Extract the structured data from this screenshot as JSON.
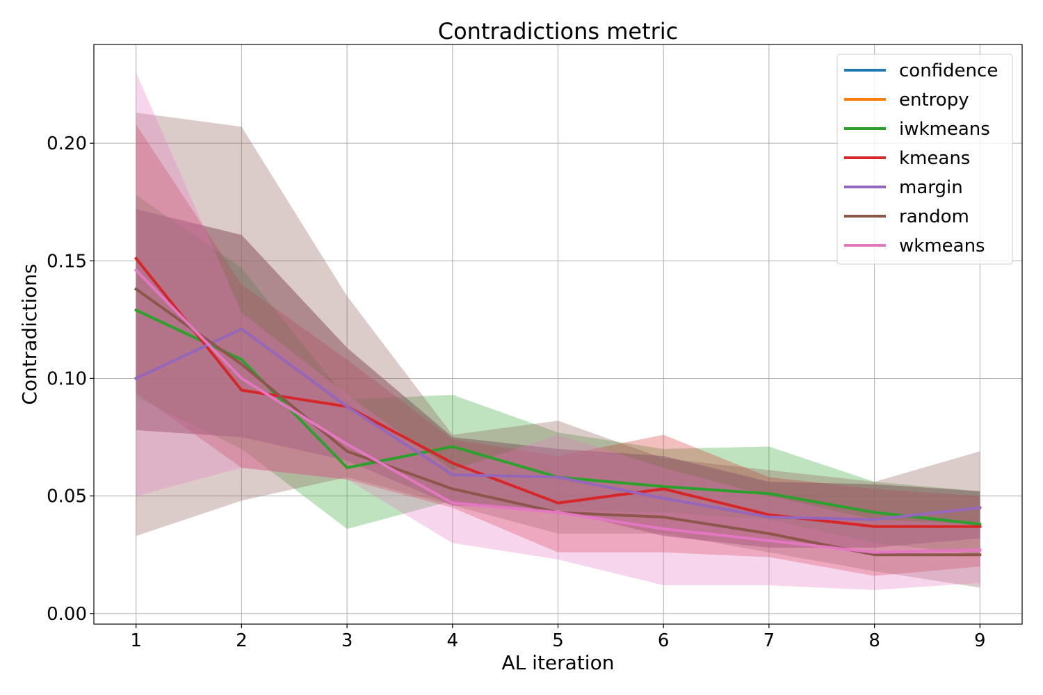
{
  "chart_data": {
    "type": "line",
    "title": "Contradictions metric",
    "xlabel": "AL iteration",
    "ylabel": "Contradictions",
    "x": [
      1,
      2,
      3,
      4,
      5,
      6,
      7,
      8,
      9
    ],
    "xlim": [
      0.6,
      9.4
    ],
    "ylim": [
      -0.0045,
      0.242
    ],
    "yticks": [
      0.0,
      0.05,
      0.1,
      0.15,
      0.2
    ],
    "ytick_labels": [
      "0.00",
      "0.05",
      "0.10",
      "0.15",
      "0.20"
    ],
    "xtick_labels": [
      "1",
      "2",
      "3",
      "4",
      "5",
      "6",
      "7",
      "8",
      "9"
    ],
    "grid": true,
    "legend_position": "top-right",
    "shaded_band": "spread",
    "series": [
      {
        "name": "confidence",
        "color": "#1f77b4",
        "values": [
          0.1,
          0.121,
          0.088,
          0.059,
          0.058,
          0.049,
          0.041,
          0.04,
          0.045
        ],
        "lower": [
          0.078,
          0.075,
          0.065,
          0.046,
          0.044,
          0.033,
          0.028,
          0.028,
          0.032
        ],
        "upper": [
          0.172,
          0.161,
          0.113,
          0.075,
          0.07,
          0.067,
          0.056,
          0.055,
          0.052
        ]
      },
      {
        "name": "entropy",
        "color": "#ff7f0e",
        "values": [
          0.1,
          0.121,
          0.088,
          0.059,
          0.058,
          0.049,
          0.041,
          0.04,
          0.045
        ],
        "lower": [
          0.078,
          0.075,
          0.065,
          0.046,
          0.044,
          0.033,
          0.028,
          0.028,
          0.032
        ],
        "upper": [
          0.172,
          0.161,
          0.113,
          0.075,
          0.07,
          0.067,
          0.056,
          0.055,
          0.052
        ]
      },
      {
        "name": "iwkmeans",
        "color": "#2ca02c",
        "values": [
          0.129,
          0.108,
          0.062,
          0.071,
          0.058,
          0.054,
          0.051,
          0.043,
          0.038
        ],
        "lower": [
          0.092,
          0.07,
          0.036,
          0.048,
          0.044,
          0.043,
          0.04,
          0.03,
          0.025
        ],
        "upper": [
          0.178,
          0.147,
          0.091,
          0.093,
          0.077,
          0.07,
          0.071,
          0.056,
          0.052
        ]
      },
      {
        "name": "kmeans",
        "color": "#d62728",
        "values": [
          0.151,
          0.095,
          0.088,
          0.064,
          0.047,
          0.053,
          0.042,
          0.037,
          0.037
        ],
        "lower": [
          0.094,
          0.062,
          0.057,
          0.045,
          0.026,
          0.026,
          0.024,
          0.016,
          0.02
        ],
        "upper": [
          0.208,
          0.14,
          0.108,
          0.074,
          0.067,
          0.076,
          0.058,
          0.053,
          0.05
        ]
      },
      {
        "name": "margin",
        "color": "#9467bd",
        "values": [
          0.1,
          0.121,
          0.088,
          0.059,
          0.058,
          0.049,
          0.041,
          0.04,
          0.045
        ],
        "lower": [
          0.078,
          0.075,
          0.065,
          0.046,
          0.044,
          0.033,
          0.028,
          0.028,
          0.032
        ],
        "upper": [
          0.172,
          0.161,
          0.113,
          0.075,
          0.07,
          0.067,
          0.056,
          0.055,
          0.052
        ]
      },
      {
        "name": "random",
        "color": "#8c564b",
        "values": [
          0.138,
          0.106,
          0.069,
          0.053,
          0.043,
          0.041,
          0.034,
          0.025,
          0.025
        ],
        "lower": [
          0.033,
          0.048,
          0.058,
          0.046,
          0.034,
          0.034,
          0.026,
          0.018,
          0.011
        ],
        "upper": [
          0.213,
          0.207,
          0.135,
          0.076,
          0.082,
          0.066,
          0.061,
          0.056,
          0.069
        ]
      },
      {
        "name": "wkmeans",
        "color": "#e377c2",
        "values": [
          0.146,
          0.1,
          0.072,
          0.047,
          0.043,
          0.036,
          0.031,
          0.026,
          0.027
        ],
        "lower": [
          0.05,
          0.062,
          0.057,
          0.03,
          0.023,
          0.012,
          0.012,
          0.01,
          0.013
        ],
        "upper": [
          0.23,
          0.128,
          0.093,
          0.061,
          0.076,
          0.062,
          0.05,
          0.04,
          0.038
        ]
      }
    ]
  }
}
